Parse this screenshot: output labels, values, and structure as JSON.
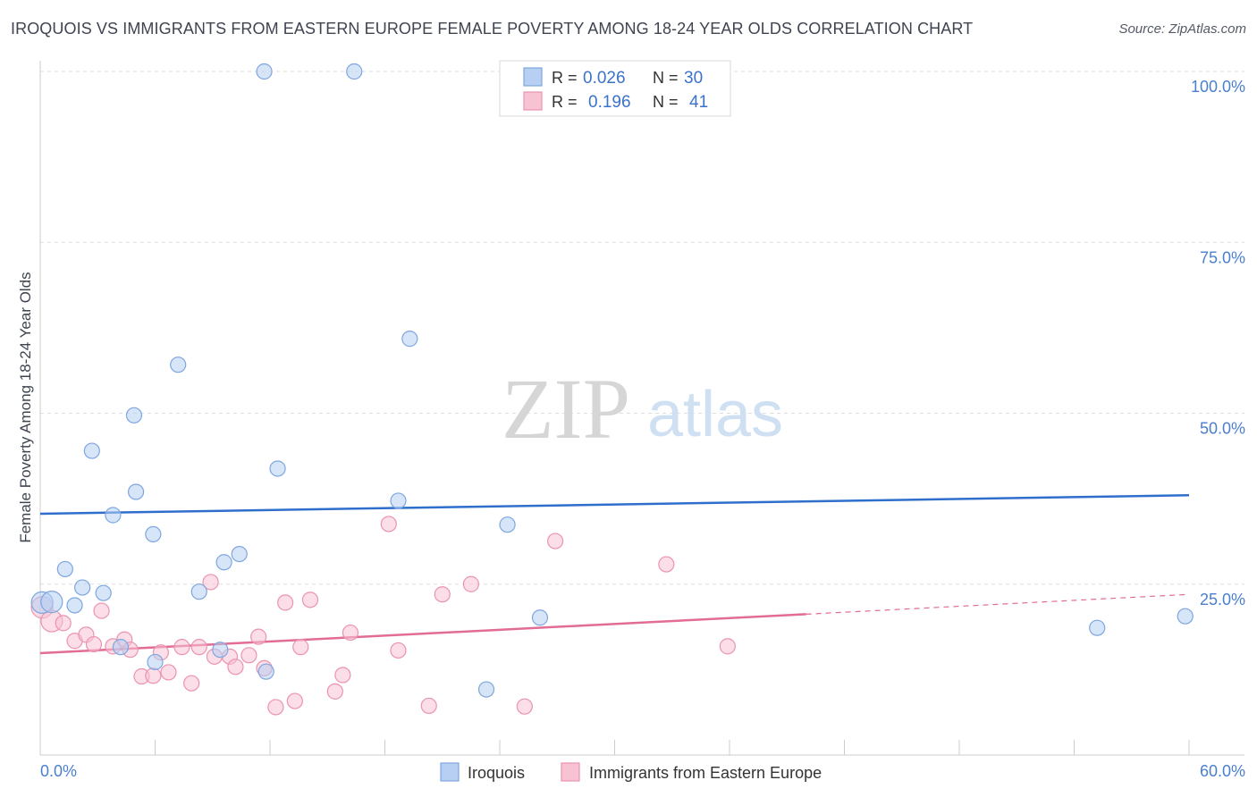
{
  "title": "IROQUOIS VS IMMIGRANTS FROM EASTERN EUROPE FEMALE POVERTY AMONG 18-24 YEAR OLDS CORRELATION CHART",
  "source": "Source: ZipAtlas.com",
  "watermark": {
    "left": "ZIP",
    "right": "atlas"
  },
  "colors": {
    "iroquois_fill": "#b6cff3",
    "iroquois_stroke": "#7ea6df",
    "iroquois_line": "#2f6fcc",
    "immig_fill": "#f7c3d3",
    "immig_stroke": "#eb93b0",
    "immig_line": "#e26c95",
    "axis_label_blue": "#4a7fcf",
    "grid": "#dddddd"
  },
  "legend_stats": [
    {
      "r_label": "R =",
      "r_value": "0.026",
      "n_label": "N =",
      "n_value": "30"
    },
    {
      "r_label": "R =",
      "r_value": "0.196",
      "n_label": "N =",
      "n_value": "41"
    }
  ],
  "chart_data": {
    "type": "scatter",
    "title": "IROQUOIS VS IMMIGRANTS FROM EASTERN EUROPE FEMALE POVERTY AMONG 18-24 YEAR OLDS CORRELATION CHART",
    "xlabel": "",
    "ylabel": "Female Poverty Among 18-24 Year Olds",
    "xlim": [
      0,
      60
    ],
    "ylim": [
      0,
      105
    ],
    "x_tick_labels": [
      "0.0%",
      "60.0%"
    ],
    "y_tick_labels": [
      "25.0%",
      "50.0%",
      "75.0%",
      "100.0%"
    ],
    "y_ticks": [
      25,
      50,
      75,
      100
    ],
    "grid": true,
    "legend_position": "bottom",
    "series": [
      {
        "name": "Iroquois",
        "points": [
          [
            0.1,
            22.3
          ],
          [
            0.6,
            22.4
          ],
          [
            1.3,
            27.2
          ],
          [
            1.8,
            21.9
          ],
          [
            2.2,
            24.5
          ],
          [
            2.7,
            44.5
          ],
          [
            3.3,
            23.7
          ],
          [
            3.8,
            35.1
          ],
          [
            4.2,
            15.8
          ],
          [
            4.9,
            49.7
          ],
          [
            5.0,
            38.5
          ],
          [
            5.9,
            32.3
          ],
          [
            6.0,
            13.6
          ],
          [
            7.2,
            57.1
          ],
          [
            8.3,
            23.9
          ],
          [
            9.4,
            15.4
          ],
          [
            9.6,
            28.2
          ],
          [
            10.4,
            29.4
          ],
          [
            11.7,
            100.0
          ],
          [
            11.8,
            12.2
          ],
          [
            12.4,
            41.9
          ],
          [
            16.4,
            100.0
          ],
          [
            18.7,
            37.2
          ],
          [
            19.3,
            60.9
          ],
          [
            23.3,
            9.6
          ],
          [
            24.4,
            33.7
          ],
          [
            26.1,
            20.1
          ],
          [
            26.3,
            100.0
          ],
          [
            55.2,
            18.6
          ],
          [
            59.8,
            20.3
          ]
        ],
        "trend": {
          "x0": 0,
          "y0": 35.3,
          "x1": 60,
          "y1": 38.0
        }
      },
      {
        "name": "Immigrants from Eastern Europe",
        "points": [
          [
            0.1,
            21.6
          ],
          [
            0.6,
            19.6
          ],
          [
            1.2,
            19.3
          ],
          [
            1.8,
            16.7
          ],
          [
            2.4,
            17.6
          ],
          [
            2.8,
            16.2
          ],
          [
            3.2,
            21.1
          ],
          [
            3.8,
            15.9
          ],
          [
            4.4,
            16.9
          ],
          [
            4.7,
            15.4
          ],
          [
            5.3,
            11.5
          ],
          [
            5.9,
            11.6
          ],
          [
            6.3,
            15.0
          ],
          [
            6.7,
            12.1
          ],
          [
            7.4,
            15.8
          ],
          [
            7.9,
            10.5
          ],
          [
            8.3,
            15.8
          ],
          [
            8.9,
            25.3
          ],
          [
            9.1,
            14.4
          ],
          [
            9.9,
            14.4
          ],
          [
            10.2,
            12.9
          ],
          [
            10.9,
            14.6
          ],
          [
            11.4,
            17.3
          ],
          [
            11.7,
            12.7
          ],
          [
            12.3,
            7.0
          ],
          [
            12.8,
            22.3
          ],
          [
            13.3,
            7.9
          ],
          [
            13.6,
            15.8
          ],
          [
            14.1,
            22.7
          ],
          [
            15.4,
            9.3
          ],
          [
            15.8,
            11.7
          ],
          [
            16.2,
            17.9
          ],
          [
            18.2,
            33.8
          ],
          [
            18.7,
            15.3
          ],
          [
            20.3,
            7.2
          ],
          [
            21.0,
            23.5
          ],
          [
            22.5,
            25.0
          ],
          [
            25.3,
            7.1
          ],
          [
            26.9,
            31.3
          ],
          [
            32.7,
            27.9
          ],
          [
            35.9,
            15.9
          ]
        ],
        "trend": {
          "x0": 0,
          "y0": 14.9,
          "x1": 40,
          "y1": 20.6
        },
        "trend_extension": {
          "x0": 40,
          "y0": 20.6,
          "x1": 60,
          "y1": 23.5
        }
      }
    ]
  }
}
